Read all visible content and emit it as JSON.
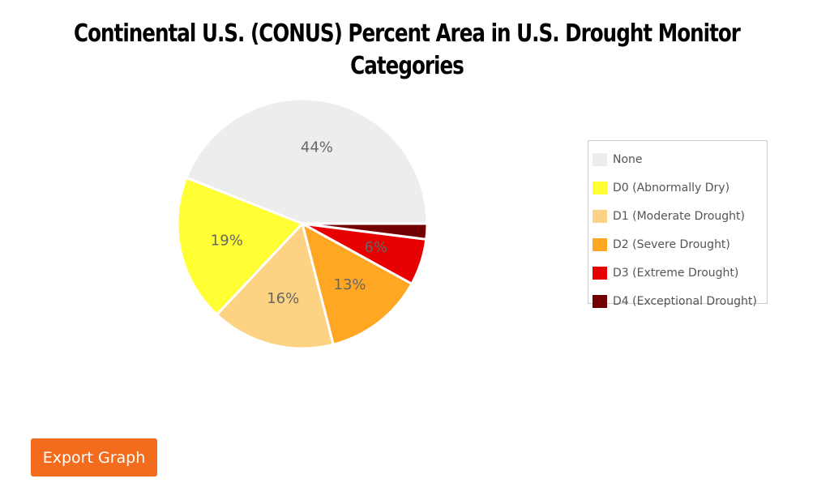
{
  "chart_data": {
    "type": "pie",
    "title": "Continental U.S. (CONUS) Percent Area in U.S. Drought Monitor Categories",
    "legend_position": "right",
    "slices": [
      {
        "name": "None",
        "value": 44,
        "label": "44%",
        "color": "#ededed"
      },
      {
        "name": "D0 (Abnormally Dry)",
        "value": 19,
        "label": "19%",
        "color": "#ffff33"
      },
      {
        "name": "D1 (Moderate Drought)",
        "value": 16,
        "label": "16%",
        "color": "#fdd282"
      },
      {
        "name": "D2 (Severe Drought)",
        "value": 13,
        "label": "13%",
        "color": "#ffa623"
      },
      {
        "name": "D3 (Extreme Drought)",
        "value": 6,
        "label": "6%",
        "color": "#e60000"
      },
      {
        "name": "D4 (Exceptional Drought)",
        "value": 2,
        "label": "",
        "color": "#730000"
      }
    ]
  },
  "actions": {
    "export_label": "Export Graph",
    "export_color": "#f36c1d"
  }
}
